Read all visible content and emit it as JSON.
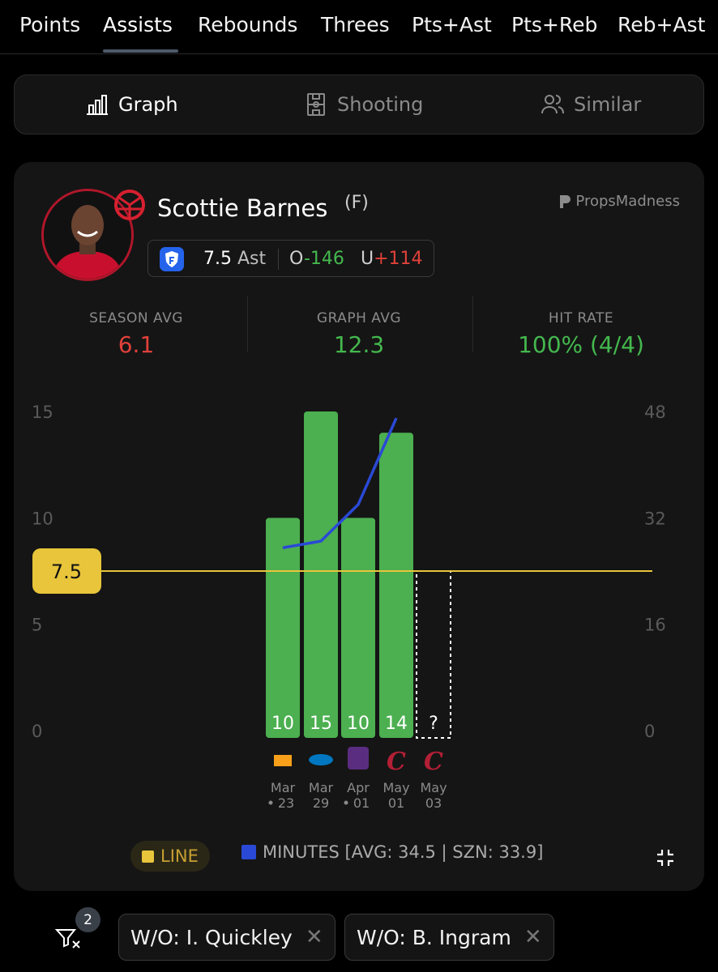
{
  "tabs": [
    {
      "label": "Points"
    },
    {
      "label": "Assists",
      "active": true
    },
    {
      "label": "Rebounds"
    },
    {
      "label": "Threes"
    },
    {
      "label": "Pts+Ast"
    },
    {
      "label": "Pts+Reb"
    },
    {
      "label": "Reb+Ast"
    }
  ],
  "views": {
    "graph": "Graph",
    "shooting": "Shooting",
    "similar": "Similar",
    "active": "graph"
  },
  "player": {
    "name": "Scottie Barnes",
    "position": "(F)"
  },
  "brand": "PropsMadness",
  "prop": {
    "line": "7.5",
    "unit": "Ast",
    "over_label": "O",
    "over_odds": "-146",
    "under_label": "U",
    "under_odds": "+114"
  },
  "stats": [
    {
      "label": "SEASON AVG",
      "value": "6.1",
      "color": "#e0413a"
    },
    {
      "label": "GRAPH AVG",
      "value": "12.3",
      "color": "#44b84e"
    },
    {
      "label": "HIT RATE",
      "value": "100% (4/4)",
      "color": "#44b84e"
    }
  ],
  "chart_data": {
    "type": "bar",
    "left_axis": {
      "ticks": [
        "15",
        "10",
        "5",
        "0"
      ],
      "range": [
        0,
        15
      ]
    },
    "right_axis": {
      "ticks": [
        "48",
        "32",
        "16",
        "0"
      ],
      "range": [
        0,
        48
      ]
    },
    "line_value": 7.5,
    "line_label": "7.5",
    "games": [
      {
        "date": "Mar",
        "day": "23",
        "dot": true,
        "opponent": "Jazz",
        "value": 10,
        "label": "10",
        "minutes": 27.5
      },
      {
        "date": "Mar",
        "day": "29",
        "dot": false,
        "opponent": "Magic",
        "value": 15,
        "label": "15",
        "minutes": 28.5
      },
      {
        "date": "Apr",
        "day": "01",
        "dot": true,
        "opponent": "Kings",
        "value": 10,
        "label": "10",
        "minutes": 34
      },
      {
        "date": "May",
        "day": "01",
        "dot": false,
        "opponent": "Cavaliers",
        "value": 14,
        "label": "14",
        "minutes": 47
      },
      {
        "date": "May",
        "day": "03",
        "dot": false,
        "opponent": "Cavaliers",
        "value": null,
        "label": "?",
        "minutes": null
      }
    ],
    "colors": {
      "bar": "#4caf50",
      "line": "#e8c53a",
      "minutes": "#2a49d6"
    }
  },
  "legend": {
    "line": "LINE",
    "minutes": "MINUTES [AVG: 34.5 | SZN: 33.9]"
  },
  "filters": {
    "count": "2",
    "chips": [
      "W/O: I. Quickley",
      "W/O: B. Ingram"
    ]
  }
}
